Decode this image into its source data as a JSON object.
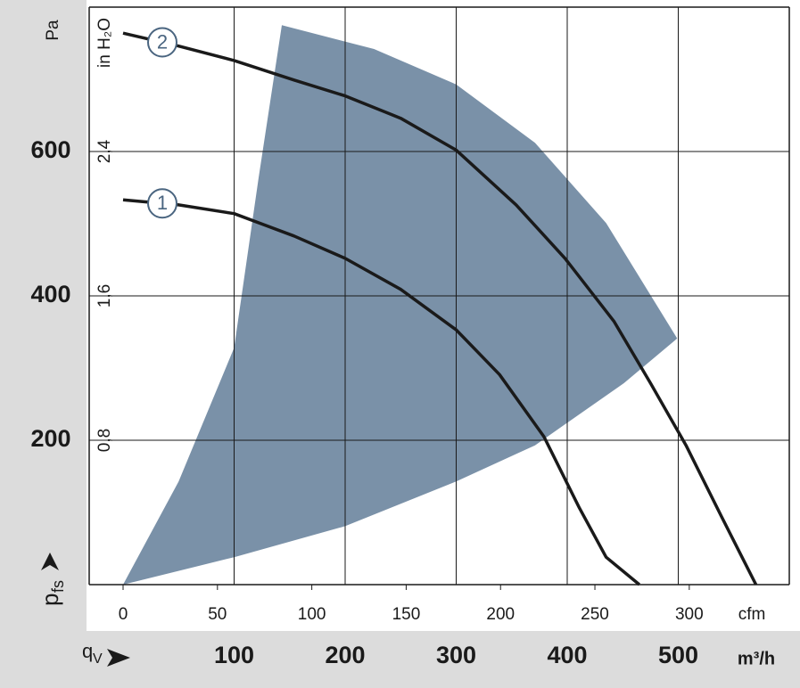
{
  "chart_data": {
    "type": "line",
    "y_unit": "Pa",
    "y2_unit": "in H₂O",
    "x_unit": "m³/h",
    "x2_unit": "cfm",
    "y_symbol": {
      "main": "p",
      "sub": "fs"
    },
    "x_symbol": {
      "main": "q",
      "sub": "V"
    },
    "xlim": [
      0,
      600
    ],
    "xticks": [
      100,
      200,
      300,
      400,
      500
    ],
    "x2lim": [
      0,
      353
    ],
    "x2ticks": [
      0,
      50,
      100,
      150,
      200,
      250,
      300
    ],
    "ylim": [
      0,
      800
    ],
    "yticks": [
      200,
      400,
      600
    ],
    "y2lim": [
      0,
      3.2
    ],
    "y2ticks": [
      {
        "value": 0.8,
        "label": "0,8"
      },
      {
        "value": 1.6,
        "label": "1,6"
      },
      {
        "value": 2.4,
        "label": "2,4"
      }
    ],
    "grid": true,
    "area": {
      "color": "#7a91a8",
      "x": [
        0,
        50,
        100,
        122,
        143,
        226,
        300,
        371,
        435,
        499,
        451,
        371,
        300,
        200,
        100
      ],
      "y": [
        0,
        143,
        328,
        563,
        775,
        742,
        693,
        612,
        501,
        341,
        279,
        193,
        143,
        81,
        38
      ]
    },
    "series": [
      {
        "name": "1",
        "color": "#1a1a1a",
        "x": [
          0,
          50,
          100,
          154,
          200,
          250,
          300,
          339,
          379,
          411,
          435,
          465
        ],
        "values": [
          533,
          526,
          514,
          483,
          452,
          409,
          353,
          291,
          205,
          106,
          38,
          0
        ]
      },
      {
        "name": "2",
        "color": "#1a1a1a",
        "x": [
          0,
          50,
          100,
          154,
          200,
          250,
          300,
          354,
          398,
          442,
          475,
          507,
          539,
          570
        ],
        "values": [
          764,
          746,
          726,
          699,
          677,
          646,
          602,
          526,
          452,
          365,
          279,
          193,
          94,
          0
        ]
      }
    ]
  }
}
